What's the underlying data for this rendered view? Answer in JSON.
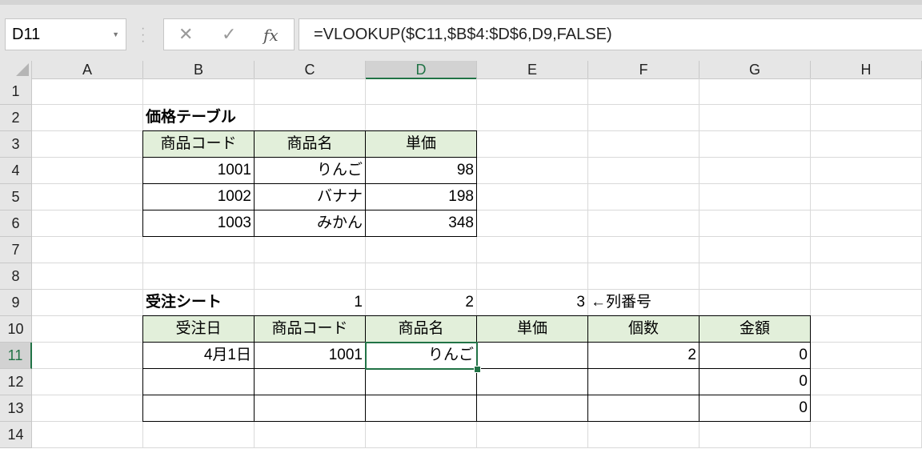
{
  "name_box": "D11",
  "formula_bar": {
    "cancel_icon": "✕",
    "enter_icon": "✓",
    "fx_label": "fx",
    "formula": "=VLOOKUP($C11,$B$4:$D$6,D9,FALSE)"
  },
  "columns": [
    "A",
    "B",
    "C",
    "D",
    "E",
    "F",
    "G",
    "H"
  ],
  "rows": [
    "1",
    "2",
    "3",
    "4",
    "5",
    "6",
    "7",
    "8",
    "9",
    "10",
    "11",
    "12",
    "13",
    "14"
  ],
  "selected_cell": "D11",
  "accent": "#217346",
  "header_fill": "#E2EFDA",
  "cells": {
    "B2": "価格テーブル",
    "B3": "商品コード",
    "C3": "商品名",
    "D3": "単価",
    "B4": "1001",
    "C4": "りんご",
    "D4": "98",
    "B5": "1002",
    "C5": "バナナ",
    "D5": "198",
    "B6": "1003",
    "C6": "みかん",
    "D6": "348",
    "B9": "受注シート",
    "C9": "1",
    "D9": "2",
    "E9": "3",
    "F9": "←列番号",
    "B10": "受注日",
    "C10": "商品コード",
    "D10": "商品名",
    "E10": "単価",
    "F10": "個数",
    "G10": "金額",
    "B11": "4月1日",
    "C11": "1001",
    "D11": "りんご",
    "F11": "2",
    "G11": "0",
    "G12": "0",
    "G13": "0"
  }
}
